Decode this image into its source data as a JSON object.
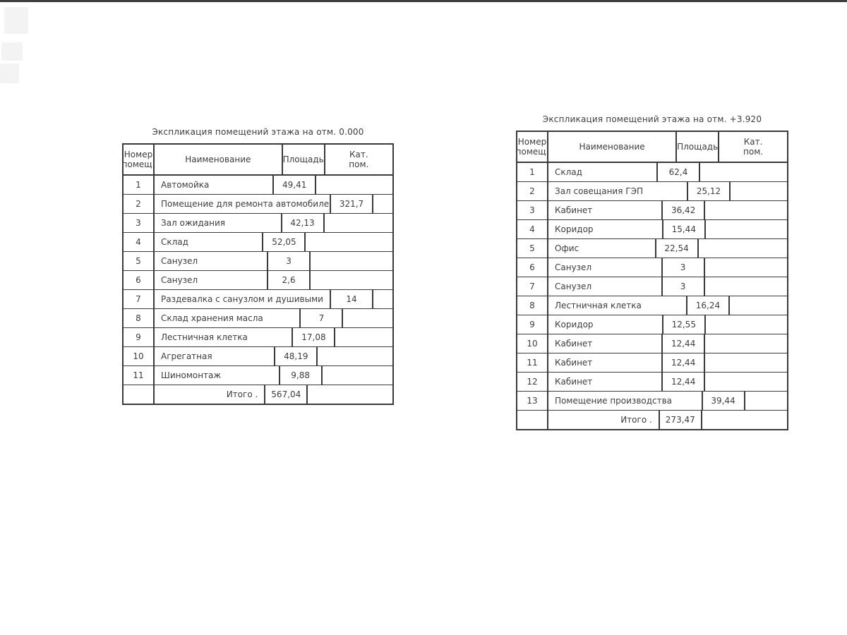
{
  "page": {
    "background": "#ffffff",
    "top_bar_color": "#3d3d3d",
    "line_color": "#3a3a3a",
    "text_color": "#3d3d3d"
  },
  "tables": [
    {
      "title": "Экспликация помещений этажа на отм. 0.000",
      "headers": {
        "number": "Номер\nпомещ.",
        "name": "Наименование",
        "area": "Площадь",
        "category": "Кат.\nпом."
      },
      "rows": [
        {
          "num": "1",
          "name": "Автомойка",
          "area": "49,41",
          "cat": ""
        },
        {
          "num": "2",
          "name": "Помещение для ремонта автомобилей",
          "area": "321,7",
          "cat": ""
        },
        {
          "num": "3",
          "name": "Зал ожидания",
          "area": "42,13",
          "cat": ""
        },
        {
          "num": "4",
          "name": "Склад",
          "area": "52,05",
          "cat": ""
        },
        {
          "num": "5",
          "name": "Санузел",
          "area": "3",
          "cat": ""
        },
        {
          "num": "6",
          "name": "Санузел",
          "area": "2,6",
          "cat": ""
        },
        {
          "num": "7",
          "name": "Раздевалка с санузлом и душивыми",
          "area": "14",
          "cat": ""
        },
        {
          "num": "8",
          "name": "Склад хранения масла",
          "area": "7",
          "cat": ""
        },
        {
          "num": "9",
          "name": "Лестничная клетка",
          "area": "17,08",
          "cat": ""
        },
        {
          "num": "10",
          "name": "Агрегатная",
          "area": "48,19",
          "cat": ""
        },
        {
          "num": "11",
          "name": "Шиномонтаж",
          "area": "9,88",
          "cat": ""
        }
      ],
      "total": {
        "label": "Итого .",
        "value": "567,04"
      }
    },
    {
      "title": "Экспликация помещений этажа на отм. +3.920",
      "headers": {
        "number": "Номер\nпомещ.",
        "name": "Наименование",
        "area": "Площадь",
        "category": "Кат.\nпом."
      },
      "rows": [
        {
          "num": "1",
          "name": "Склад",
          "area": "62,4",
          "cat": ""
        },
        {
          "num": "2",
          "name": "Зал совещания ГЭП",
          "area": "25,12",
          "cat": ""
        },
        {
          "num": "3",
          "name": "Кабинет",
          "area": "36,42",
          "cat": ""
        },
        {
          "num": "4",
          "name": "Коридор",
          "area": "15,44",
          "cat": ""
        },
        {
          "num": "5",
          "name": "Офис",
          "area": "22,54",
          "cat": ""
        },
        {
          "num": "6",
          "name": "Санузел",
          "area": "3",
          "cat": ""
        },
        {
          "num": "7",
          "name": "Санузел",
          "area": "3",
          "cat": ""
        },
        {
          "num": "8",
          "name": "Лестничная клетка",
          "area": "16,24",
          "cat": ""
        },
        {
          "num": "9",
          "name": "Коридор",
          "area": "12,55",
          "cat": ""
        },
        {
          "num": "10",
          "name": "Кабинет",
          "area": "12,44",
          "cat": ""
        },
        {
          "num": "11",
          "name": "Кабинет",
          "area": "12,44",
          "cat": ""
        },
        {
          "num": "12",
          "name": "Кабинет",
          "area": "12,44",
          "cat": ""
        },
        {
          "num": "13",
          "name": "Помещение производства",
          "area": "39,44",
          "cat": ""
        }
      ],
      "total": {
        "label": "Итого .",
        "value": "273,47"
      }
    }
  ]
}
